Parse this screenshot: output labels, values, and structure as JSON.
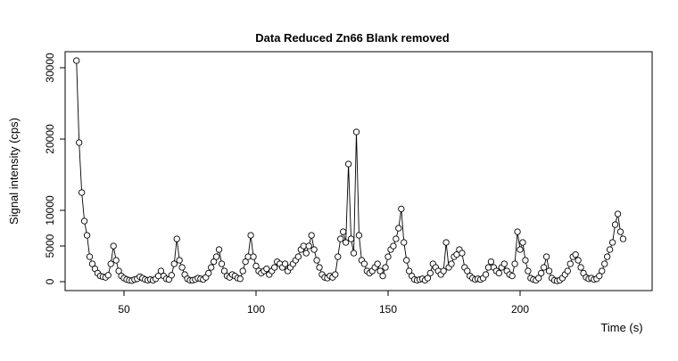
{
  "chart_data": {
    "type": "line",
    "title": "Data Reduced Zn66 Blank removed",
    "x_label": "Time (s)",
    "y_label": "Signal intensity (cps)",
    "xlim": [
      27.7,
      250
    ],
    "ylim": [
      -1250,
      32250
    ],
    "xticks": [
      50,
      100,
      150,
      200
    ],
    "yticks": [
      0,
      5000,
      10000,
      20000,
      30000
    ],
    "markers": true,
    "grid": false,
    "series": [
      {
        "color": "#000000",
        "x": [
          32,
          33,
          34,
          35,
          36,
          37,
          38,
          39,
          40,
          41,
          42,
          43,
          44,
          45,
          46,
          47,
          48,
          49,
          50,
          51,
          52,
          53,
          54,
          55,
          56,
          57,
          58,
          59,
          60,
          61,
          62,
          63,
          64,
          65,
          66,
          67,
          68,
          69,
          70,
          71,
          72,
          73,
          74,
          75,
          76,
          77,
          78,
          79,
          80,
          81,
          82,
          83,
          84,
          85,
          86,
          87,
          88,
          89,
          90,
          91,
          92,
          93,
          94,
          95,
          96,
          97,
          98,
          99,
          100,
          101,
          102,
          103,
          104,
          105,
          106,
          107,
          108,
          109,
          110,
          111,
          112,
          113,
          114,
          115,
          116,
          117,
          118,
          119,
          120,
          121,
          122,
          123,
          124,
          125,
          126,
          127,
          128,
          129,
          130,
          131,
          132,
          133,
          134,
          135,
          136,
          137,
          138,
          139,
          140,
          141,
          142,
          143,
          144,
          145,
          146,
          147,
          148,
          149,
          150,
          151,
          152,
          153,
          154,
          155,
          156,
          157,
          158,
          159,
          160,
          161,
          162,
          163,
          164,
          165,
          166,
          167,
          168,
          169,
          170,
          171,
          172,
          173,
          174,
          175,
          176,
          177,
          178,
          179,
          180,
          181,
          182,
          183,
          184,
          185,
          186,
          187,
          188,
          189,
          190,
          191,
          192,
          193,
          194,
          195,
          196,
          197,
          198,
          199,
          200,
          201,
          202,
          203,
          204,
          205,
          206,
          207,
          208,
          209,
          210,
          211,
          212,
          213,
          214,
          215,
          216,
          217,
          218,
          219,
          220,
          221,
          222,
          223,
          224,
          225,
          226,
          227,
          228,
          229,
          230,
          231,
          232,
          233,
          234,
          235,
          236,
          237,
          238,
          239
        ],
        "values": [
          31000,
          19500,
          12500,
          8500,
          6500,
          3500,
          2500,
          1800,
          1200,
          800,
          700,
          600,
          900,
          2500,
          5000,
          3000,
          1500,
          800,
          500,
          300,
          200,
          150,
          300,
          400,
          700,
          500,
          300,
          200,
          300,
          200,
          400,
          800,
          1500,
          800,
          400,
          300,
          900,
          2500,
          6000,
          3000,
          2000,
          1000,
          400,
          200,
          200,
          300,
          500,
          400,
          300,
          600,
          1200,
          2000,
          2800,
          3500,
          4500,
          2500,
          1500,
          800,
          600,
          1000,
          800,
          500,
          400,
          1500,
          2800,
          3500,
          6500,
          3500,
          2200,
          1500,
          1200,
          1500,
          1800,
          1000,
          1500,
          2000,
          2800,
          2500,
          2000,
          2500,
          1500,
          2000,
          2500,
          3000,
          3500,
          4500,
          5000,
          4000,
          5000,
          6500,
          4500,
          3000,
          2000,
          1000,
          600,
          500,
          800,
          600,
          1000,
          3500,
          6000,
          7000,
          5500,
          16500,
          6000,
          4000,
          21000,
          6500,
          3000,
          2500,
          1500,
          1200,
          1500,
          2000,
          2500,
          1500,
          800,
          2000,
          3500,
          4500,
          5000,
          6000,
          7500,
          10200,
          5500,
          3000,
          1500,
          800,
          300,
          200,
          300,
          400,
          200,
          500,
          1200,
          2500,
          2000,
          1500,
          1000,
          1500,
          5500,
          2000,
          2500,
          3500,
          3800,
          4500,
          4000,
          2000,
          1500,
          800,
          500,
          300,
          400,
          300,
          500,
          1000,
          2000,
          2800,
          2000,
          1500,
          1200,
          2000,
          2500,
          1500,
          1000,
          800,
          2500,
          7000,
          4500,
          5500,
          3000,
          1500,
          500,
          300,
          200,
          500,
          1200,
          2000,
          3500,
          1500,
          500,
          200,
          100,
          200,
          500,
          1000,
          1500,
          2500,
          3500,
          3800,
          3000,
          2000,
          1200,
          600,
          400,
          500,
          300,
          400,
          800,
          1500,
          2500,
          3500,
          4500,
          5500,
          8000,
          9500,
          7000,
          6000
        ]
      }
    ]
  }
}
